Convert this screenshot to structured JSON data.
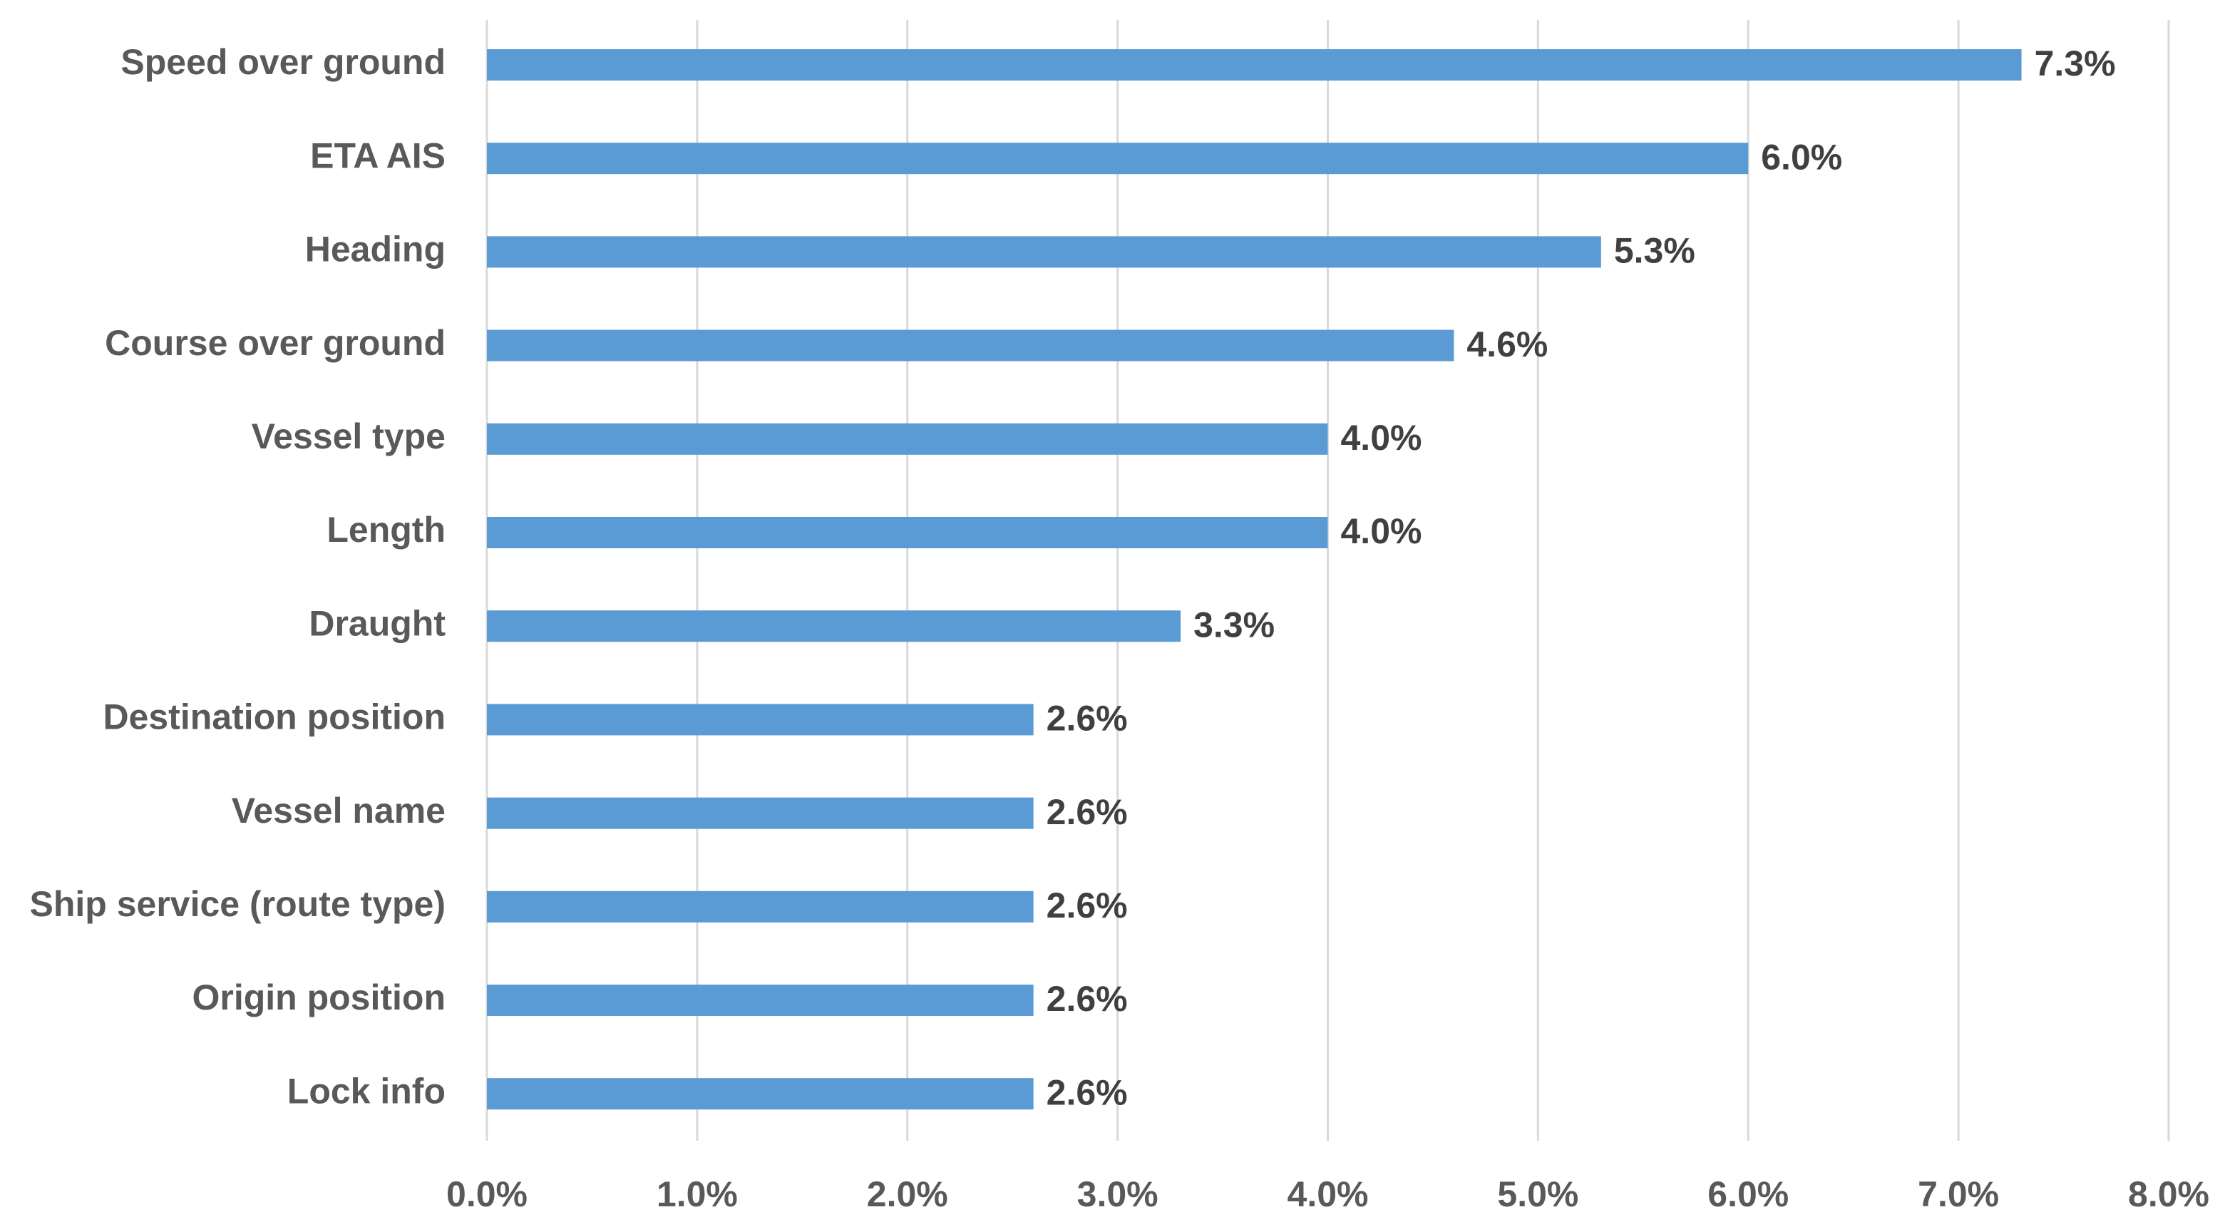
{
  "chart_data": {
    "type": "bar",
    "orientation": "horizontal",
    "categories": [
      "Speed over ground",
      "ETA AIS",
      "Heading",
      "Course over ground",
      "Vessel type",
      "Length",
      "Draught",
      "Destination position",
      "Vessel name",
      "Ship service (route type)",
      "Origin position",
      "Lock info"
    ],
    "values": [
      7.3,
      6.0,
      5.3,
      4.6,
      4.0,
      4.0,
      3.3,
      2.6,
      2.6,
      2.6,
      2.6,
      2.6
    ],
    "value_labels": [
      "7.3%",
      "6.0%",
      "5.3%",
      "4.6%",
      "4.0%",
      "4.0%",
      "3.3%",
      "2.6%",
      "2.6%",
      "2.6%",
      "2.6%",
      "2.6%"
    ],
    "color": "#5b9bd5",
    "xlim": [
      0,
      8
    ],
    "xticks": [
      {
        "value": 0,
        "label": "0.0%"
      },
      {
        "value": 1,
        "label": "1.0%"
      },
      {
        "value": 2,
        "label": "2.0%"
      },
      {
        "value": 3,
        "label": "3.0%"
      },
      {
        "value": 4,
        "label": "4.0%"
      },
      {
        "value": 5,
        "label": "5.0%"
      },
      {
        "value": 6,
        "label": "6.0%"
      },
      {
        "value": 7,
        "label": "7.0%"
      },
      {
        "value": 8,
        "label": "8.0%"
      }
    ],
    "grid": true
  }
}
